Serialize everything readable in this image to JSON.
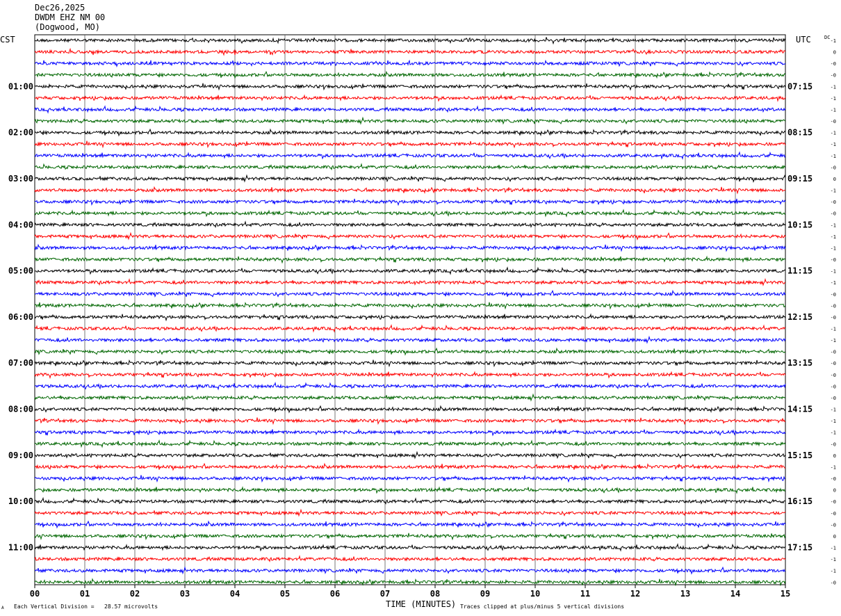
{
  "header": {
    "date": "Dec26,2025",
    "station": "DWDM EHZ NM 00",
    "location": "(Dogwood, MO)"
  },
  "left_tz": "CST",
  "right_tz": "UTC",
  "dc_label": "DC",
  "footer": {
    "xlabel": "TIME (MINUTES)",
    "scale_note": "Each Vertical Division =   28.57 microvolts",
    "clip_note": "Traces clipped at plus/minus 5 vertical divisions",
    "corner_mark": "A"
  },
  "colors": {
    "trace_cycle": [
      "#000000",
      "#ff0000",
      "#0000ff",
      "#006600"
    ],
    "grid": "#000000"
  },
  "chart_data": {
    "type": "line",
    "xlabel": "TIME (MINUTES)",
    "xlim": [
      0,
      15
    ],
    "x_ticks": [
      "00",
      "01",
      "02",
      "03",
      "04",
      "05",
      "06",
      "07",
      "08",
      "09",
      "10",
      "11",
      "12",
      "13",
      "14",
      "15"
    ],
    "trace_count": 48,
    "left_labels": [
      "01:00",
      "02:00",
      "03:00",
      "04:00",
      "05:00",
      "06:00",
      "07:00",
      "08:00",
      "09:00",
      "10:00",
      "11:00"
    ],
    "right_labels": [
      "07:15",
      "08:15",
      "09:15",
      "10:15",
      "11:15",
      "12:15",
      "13:15",
      "14:15",
      "15:15",
      "16:15",
      "17:15"
    ],
    "dc_offsets": [
      "-1",
      "0",
      "-0",
      "-0",
      "-1",
      "-1",
      "-1",
      "-0",
      "-1",
      "-1",
      "-1",
      "-0",
      "0",
      "-1",
      "-0",
      "-0",
      "-1",
      "-1",
      "-1",
      "-0",
      "-1",
      "-1",
      "-0",
      "-0",
      "-0",
      "-1",
      "-1",
      "-0",
      "-0",
      "-0",
      "-0",
      "-0",
      "-1",
      "-1",
      "-1",
      "-0",
      "0",
      "-1",
      "-0",
      "0",
      "-0",
      "-0",
      "-0",
      "0",
      "-1",
      "-1",
      "-1",
      "-0"
    ]
  }
}
